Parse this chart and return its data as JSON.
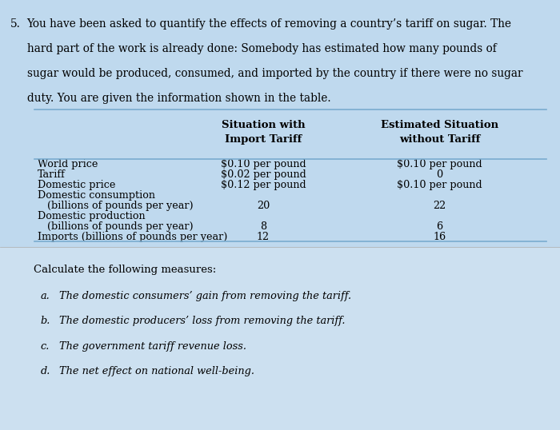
{
  "bg_top_color": "#bfd9ee",
  "bg_bottom_color": "#cce0f0",
  "question_number": "5.",
  "question_text": "You have been asked to quantify the effects of removing a country’s tariff on sugar. The hard part of the work is already done: Somebody has estimated how many pounds of sugar would be produced, consumed, and imported by the country if there were no sugar duty. You are given the information shown in the table.",
  "col1_header": "Situation with\nImport Tariff",
  "col2_header": "Estimated Situation\nwithout Tariff",
  "rows": [
    {
      "label": "World price",
      "col1": "$0.10 per pound",
      "col2": "$0.10 per pound"
    },
    {
      "label": "Tariff",
      "col1": "$0.02 per pound",
      "col2": "0"
    },
    {
      "label": "Domestic price",
      "col1": "$0.12 per pound",
      "col2": "$0.10 per pound"
    },
    {
      "label": "Domestic consumption",
      "col1": "",
      "col2": ""
    },
    {
      "label": "   (billions of pounds per year)",
      "col1": "20",
      "col2": "22"
    },
    {
      "label": "Domestic production",
      "col1": "",
      "col2": ""
    },
    {
      "label": "   (billions of pounds per year)",
      "col1": "8",
      "col2": "6"
    },
    {
      "label": "Imports (billions of pounds per year)",
      "col1": "12",
      "col2": "16"
    }
  ],
  "bottom_text_intro": "Calculate the following measures:",
  "bottom_items": [
    [
      "a.",
      "The domestic consumers’ gain from removing the tariff."
    ],
    [
      "b.",
      "The domestic producers’ loss from removing the tariff."
    ],
    [
      "c.",
      "The government tariff revenue loss."
    ],
    [
      "d.",
      "The net effect on national well-being."
    ]
  ],
  "line_color": "#7aaccf",
  "divider_color": "#aaaaaa"
}
